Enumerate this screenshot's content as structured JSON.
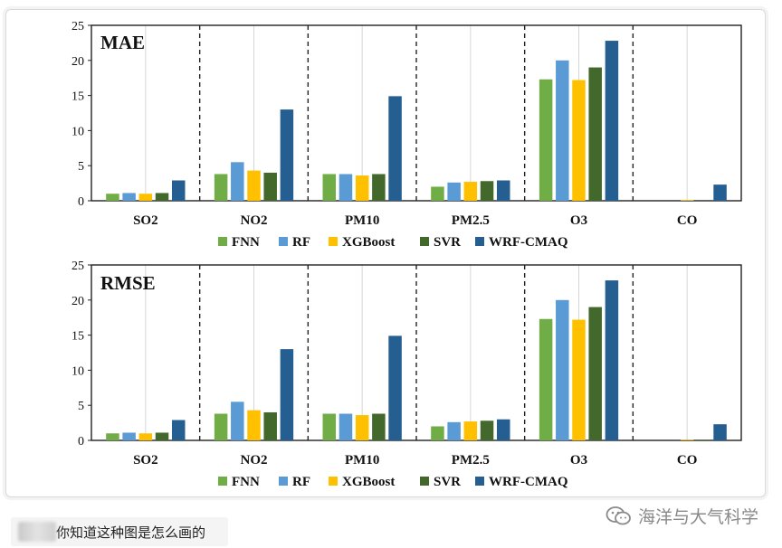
{
  "chart_data": [
    {
      "type": "bar",
      "title": "MAE",
      "categories": [
        "SO2",
        "NO2",
        "PM10",
        "PM2.5",
        "O3",
        "CO"
      ],
      "ylim": [
        0,
        25
      ],
      "yticks": [
        0,
        5,
        10,
        15,
        20,
        25
      ],
      "grid": false,
      "legend_position": "bottom",
      "series": [
        {
          "name": "FNN",
          "color": "#70ad47",
          "values": [
            1.0,
            3.8,
            3.8,
            2.0,
            17.3,
            0.0
          ]
        },
        {
          "name": "RF",
          "color": "#5b9bd5",
          "values": [
            1.1,
            5.5,
            3.8,
            2.6,
            20.0,
            0.0
          ]
        },
        {
          "name": "XGBoost",
          "color": "#ffc000",
          "values": [
            1.0,
            4.3,
            3.6,
            2.7,
            17.2,
            0.1
          ]
        },
        {
          "name": "SVR",
          "color": "#43682b",
          "values": [
            1.1,
            4.0,
            3.8,
            2.8,
            19.0,
            0.0
          ]
        },
        {
          "name": "WRF-CMAQ",
          "color": "#255e91",
          "values": [
            2.9,
            13.0,
            14.9,
            2.9,
            22.8,
            2.3
          ]
        }
      ]
    },
    {
      "type": "bar",
      "title": "RMSE",
      "categories": [
        "SO2",
        "NO2",
        "PM10",
        "PM2.5",
        "O3",
        "CO"
      ],
      "ylim": [
        0,
        25
      ],
      "yticks": [
        0,
        5,
        10,
        15,
        20,
        25
      ],
      "grid": false,
      "legend_position": "bottom",
      "series": [
        {
          "name": "FNN",
          "color": "#70ad47",
          "values": [
            1.0,
            3.8,
            3.8,
            2.0,
            17.3,
            0.0
          ]
        },
        {
          "name": "RF",
          "color": "#5b9bd5",
          "values": [
            1.1,
            5.5,
            3.8,
            2.6,
            20.0,
            0.0
          ]
        },
        {
          "name": "XGBoost",
          "color": "#ffc000",
          "values": [
            1.0,
            4.3,
            3.6,
            2.7,
            17.2,
            0.1
          ]
        },
        {
          "name": "SVR",
          "color": "#43682b",
          "values": [
            1.1,
            4.0,
            3.8,
            2.8,
            19.0,
            0.1
          ]
        },
        {
          "name": "WRF-CMAQ",
          "color": "#255e91",
          "values": [
            2.9,
            13.0,
            14.9,
            3.0,
            22.8,
            2.3
          ]
        }
      ]
    }
  ],
  "footer": {
    "question": "你知道这种图是怎么画的",
    "watermark": "海洋与大气科学",
    "watermark_icon": "wechat-icon"
  }
}
